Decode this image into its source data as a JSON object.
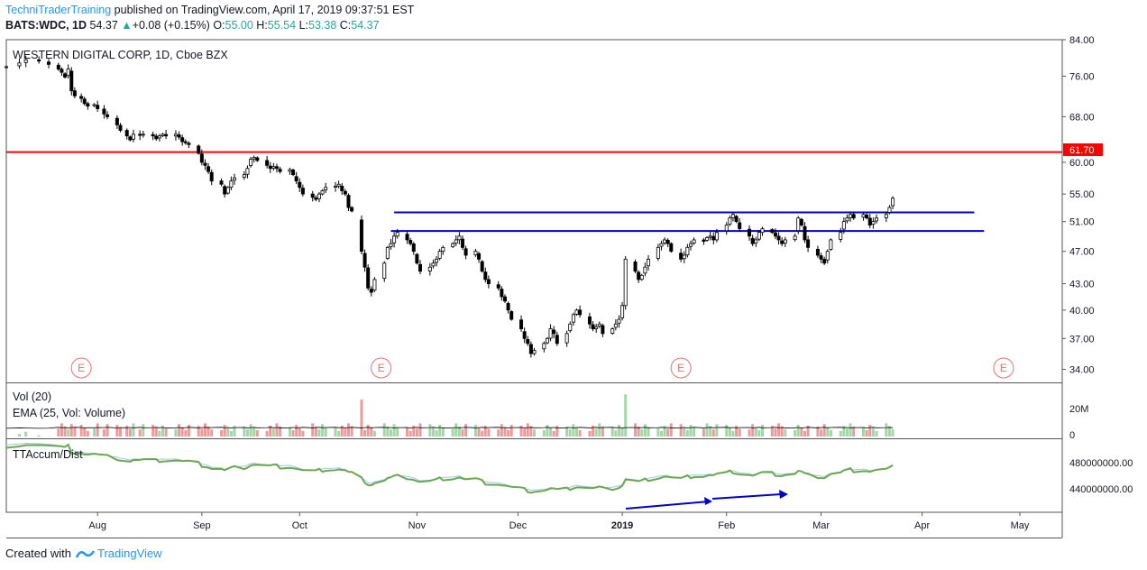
{
  "header": {
    "author": "TechniTraderTraining",
    "published_text": " published on TradingView.com, April 17, 2019 09:37:51 EST",
    "symbol": "BATS:WDC, 1D",
    "last": "54.37",
    "arrow": "▲",
    "change": "+0.08 (+0.15%)",
    "o_label": "O:",
    "o_value": "55.00",
    "h_label": "H:",
    "h_value": "55.54",
    "l_label": "L:",
    "l_value": "53.38",
    "c_label": "C:",
    "c_value": "54.37"
  },
  "footer": {
    "created_with": "Created with",
    "brand": "TradingView"
  },
  "chart_data": {
    "type": "candlestick",
    "title": "WESTERN DIGITAL CORP, 1D, Cboe BZX",
    "colors": {
      "up": "#26a69a",
      "down": "#000000",
      "resistance_red": "#ff0000",
      "support_blue": "#0000cc",
      "vol_up": "#a5d6a7",
      "vol_down": "#ef9a9a",
      "accum": "#6aa84f",
      "accum_ma": "#9fc5e8"
    },
    "x_ticks": [
      "Aug",
      "Sep",
      "Oct",
      "Nov",
      "Dec",
      "2019",
      "Feb",
      "Mar",
      "Apr",
      "May"
    ],
    "x_tick_days": [
      14,
      46,
      76,
      112,
      143,
      175,
      207,
      236,
      267,
      297
    ],
    "price_ticks": [
      "84.00",
      "76.00",
      "68.00",
      "60.00",
      "55.00",
      "51.00",
      "47.00",
      "43.00",
      "40.00",
      "37.00",
      "34.00"
    ],
    "price_tick_values": [
      84,
      76,
      68,
      60,
      55,
      51,
      47,
      43,
      40,
      37,
      34
    ],
    "price_scale": "log",
    "price_range": [
      32.8,
      84
    ],
    "days_range": [
      -14,
      310
    ],
    "key_level": {
      "label": "61.70",
      "value": 61.7
    },
    "horizontal_lines": [
      {
        "name": "resistance",
        "value": 61.7,
        "day_start": -14,
        "day_end": 310,
        "color": "#ff0000"
      },
      {
        "name": "upper-blue",
        "value": 52.3,
        "day_start": 105,
        "day_end": 283,
        "color": "#0000cc"
      },
      {
        "name": "lower-blue",
        "value": 49.7,
        "day_start": 104,
        "day_end": 286,
        "color": "#0000cc"
      }
    ],
    "earnings_markers": [
      {
        "label": "E",
        "day": 9
      },
      {
        "label": "E",
        "day": 101
      },
      {
        "label": "E",
        "day": 193
      },
      {
        "label": "E",
        "day": 292
      }
    ],
    "closes": [
      [
        -14,
        78.0
      ],
      [
        -10,
        78.8
      ],
      [
        -8,
        79.5
      ],
      [
        -4,
        79.2
      ],
      [
        -1,
        78.5
      ],
      [
        2,
        77.5
      ],
      [
        3,
        76.8
      ],
      [
        4,
        75.8
      ],
      [
        5,
        77.5
      ],
      [
        6,
        73.0
      ],
      [
        7,
        72.0
      ],
      [
        9,
        71.5
      ],
      [
        10,
        70.5
      ],
      [
        11,
        70.0
      ],
      [
        13,
        70.3
      ],
      [
        14,
        69.5
      ],
      [
        16,
        68.5
      ],
      [
        17,
        68.0
      ],
      [
        20,
        66.5
      ],
      [
        21,
        65.5
      ],
      [
        23,
        64.5
      ],
      [
        24,
        63.8
      ],
      [
        25,
        64.8
      ],
      [
        27,
        64.6
      ],
      [
        28,
        64.8
      ],
      [
        31,
        64.5
      ],
      [
        32,
        64.0
      ],
      [
        33,
        64.5
      ],
      [
        34,
        64.8
      ],
      [
        35,
        64.5
      ],
      [
        38,
        64.8
      ],
      [
        39,
        64.3
      ],
      [
        40,
        63.5
      ],
      [
        41,
        63.3
      ],
      [
        42,
        63.0
      ],
      [
        45,
        61.5
      ],
      [
        46,
        60.0
      ],
      [
        47,
        59.5
      ],
      [
        48,
        58.5
      ],
      [
        49,
        57.0
      ],
      [
        52,
        56.5
      ],
      [
        53,
        55.0
      ],
      [
        54,
        56.0
      ],
      [
        55,
        57.0
      ],
      [
        56,
        57.5
      ],
      [
        59,
        58.0
      ],
      [
        60,
        59.0
      ],
      [
        61,
        60.5
      ],
      [
        62,
        60.8
      ],
      [
        63,
        60.3
      ],
      [
        66,
        59.5
      ],
      [
        67,
        59.0
      ],
      [
        68,
        59.3
      ],
      [
        69,
        59.0
      ],
      [
        70,
        58.5
      ],
      [
        73,
        58.8
      ],
      [
        74,
        58.0
      ],
      [
        75,
        57.0
      ],
      [
        76,
        56.0
      ],
      [
        77,
        55.0
      ],
      [
        80,
        54.5
      ],
      [
        81,
        54.2
      ],
      [
        82,
        55.0
      ],
      [
        83,
        55.5
      ],
      [
        84,
        56.0
      ],
      [
        87,
        56.2
      ],
      [
        88,
        56.5
      ],
      [
        89,
        55.5
      ],
      [
        90,
        55.0
      ],
      [
        91,
        53.0
      ],
      [
        92,
        52.5
      ],
      [
        95,
        47.0
      ],
      [
        96,
        45.0
      ],
      [
        97,
        42.5
      ],
      [
        98,
        42.0
      ],
      [
        99,
        43.5
      ],
      [
        102,
        45.5
      ],
      [
        103,
        47.5
      ],
      [
        104,
        48.0
      ],
      [
        105,
        49.0
      ],
      [
        106,
        49.5
      ],
      [
        109,
        48.5
      ],
      [
        110,
        48.0
      ],
      [
        111,
        47.0
      ],
      [
        112,
        45.5
      ],
      [
        113,
        44.5
      ],
      [
        116,
        45.0
      ],
      [
        117,
        45.5
      ],
      [
        118,
        46.0
      ],
      [
        119,
        47.0
      ],
      [
        120,
        47.5
      ],
      [
        123,
        48.0
      ],
      [
        124,
        48.5
      ],
      [
        125,
        49.0
      ],
      [
        126,
        47.5
      ],
      [
        127,
        46.5
      ],
      [
        130,
        47.0
      ],
      [
        131,
        46.0
      ],
      [
        132,
        44.5
      ],
      [
        133,
        43.5
      ],
      [
        134,
        43.0
      ],
      [
        137,
        42.5
      ],
      [
        138,
        41.5
      ],
      [
        139,
        41.0
      ],
      [
        140,
        40.0
      ],
      [
        141,
        39.0
      ],
      [
        144,
        38.0
      ],
      [
        145,
        37.0
      ],
      [
        146,
        36.5
      ],
      [
        147,
        35.5
      ],
      [
        148,
        35.8
      ],
      [
        151,
        36.5
      ],
      [
        152,
        37.0
      ],
      [
        153,
        38.0
      ],
      [
        154,
        37.5
      ],
      [
        155,
        36.5
      ],
      [
        158,
        37.5
      ],
      [
        159,
        38.5
      ],
      [
        160,
        39.5
      ],
      [
        161,
        40.0
      ],
      [
        162,
        39.5
      ],
      [
        165,
        38.5
      ],
      [
        166,
        38.0
      ],
      [
        167,
        38.2
      ],
      [
        168,
        38.5
      ],
      [
        169,
        37.5
      ],
      [
        172,
        38.0
      ],
      [
        173,
        38.5
      ],
      [
        174,
        39.0
      ],
      [
        175,
        40.5
      ],
      [
        176,
        46.0
      ],
      [
        179,
        44.5
      ],
      [
        180,
        43.5
      ],
      [
        181,
        44.0
      ],
      [
        182,
        45.0
      ],
      [
        183,
        46.0
      ],
      [
        186,
        47.5
      ],
      [
        187,
        48.0
      ],
      [
        188,
        48.5
      ],
      [
        189,
        48.0
      ],
      [
        190,
        47.0
      ],
      [
        193,
        46.0
      ],
      [
        194,
        46.5
      ],
      [
        195,
        47.5
      ],
      [
        196,
        48.0
      ],
      [
        197,
        48.5
      ],
      [
        200,
        48.3
      ],
      [
        201,
        48.8
      ],
      [
        202,
        49.0
      ],
      [
        203,
        48.5
      ],
      [
        204,
        49.5
      ],
      [
        207,
        50.5
      ],
      [
        208,
        51.5
      ],
      [
        209,
        52.0
      ],
      [
        210,
        51.0
      ],
      [
        211,
        50.0
      ],
      [
        214,
        49.0
      ],
      [
        215,
        48.0
      ],
      [
        216,
        48.5
      ],
      [
        217,
        49.5
      ],
      [
        218,
        50.0
      ],
      [
        221,
        49.5
      ],
      [
        222,
        49.0
      ],
      [
        223,
        48.5
      ],
      [
        224,
        48.0
      ],
      [
        225,
        48.5
      ],
      [
        228,
        49.0
      ],
      [
        229,
        51.5
      ],
      [
        230,
        50.5
      ],
      [
        231,
        48.5
      ],
      [
        232,
        47.5
      ],
      [
        235,
        46.5
      ],
      [
        236,
        46.0
      ],
      [
        237,
        45.5
      ],
      [
        238,
        47.0
      ],
      [
        239,
        48.5
      ],
      [
        242,
        49.5
      ],
      [
        243,
        51.0
      ],
      [
        244,
        51.5
      ],
      [
        245,
        52.0
      ],
      [
        246,
        51.5
      ],
      [
        249,
        52.0
      ],
      [
        250,
        51.5
      ],
      [
        251,
        50.5
      ],
      [
        252,
        51.0
      ],
      [
        253,
        51.5
      ],
      [
        256,
        52.0
      ],
      [
        257,
        53.0
      ],
      [
        258,
        54.37
      ]
    ],
    "volume": {
      "label": "Vol (20)",
      "ema_label": "EMA (25, Vol: Volume)",
      "ticks": [
        "20M",
        "0"
      ],
      "tick_values": [
        20,
        0
      ],
      "max": 37,
      "unit": "M"
    },
    "accum": {
      "label": "TTAccum/Dist",
      "ticks": [
        "480000000.00",
        "440000000.00"
      ],
      "tick_values": [
        480000000,
        440000000
      ],
      "range": [
        405000000,
        500000000
      ]
    }
  }
}
